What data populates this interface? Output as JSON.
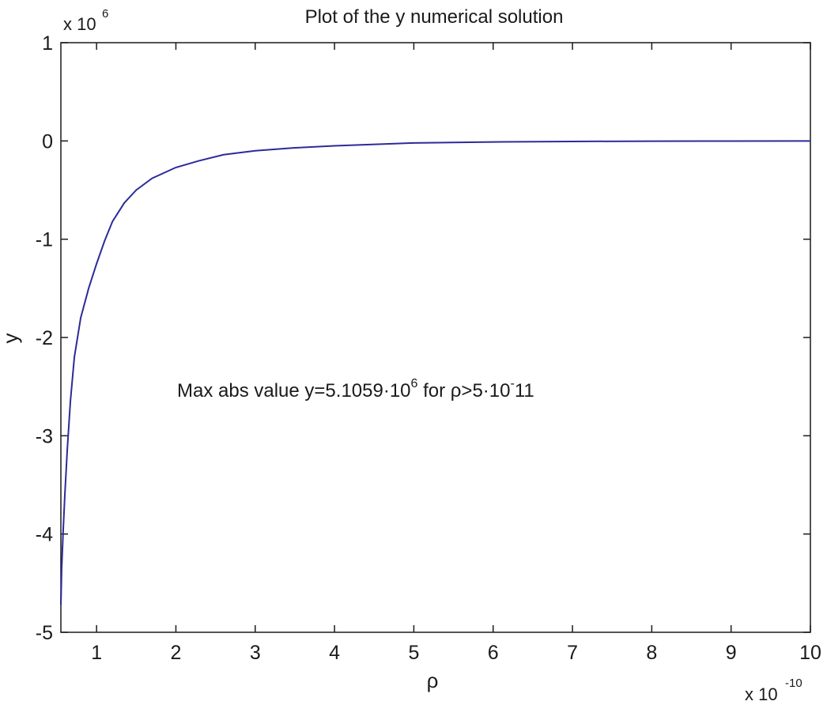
{
  "chart_data": {
    "type": "line",
    "title": "Plot of the y numerical solution",
    "xlabel": "ρ",
    "ylabel": "y",
    "x_multiplier": {
      "base": "x 10",
      "exponent": "-10"
    },
    "y_multiplier": {
      "base": "x 10",
      "exponent": "6"
    },
    "xlim": [
      0.55,
      10
    ],
    "ylim": [
      -5,
      1
    ],
    "xticks": [
      1,
      2,
      3,
      4,
      5,
      6,
      7,
      8,
      9,
      10
    ],
    "yticks": [
      1,
      0,
      -1,
      -2,
      -3,
      -4,
      -5
    ],
    "grid": false,
    "annotation": {
      "text_before": "Max abs value y=5.1059·10",
      "sup1": "6",
      "text_middle": " for ρ>5·10",
      "sup2": "-",
      "text_after": "11"
    },
    "series": [
      {
        "color": "#2b2b9a",
        "x": [
          0.55,
          0.56,
          0.58,
          0.6,
          0.63,
          0.67,
          0.72,
          0.8,
          0.9,
          1.0,
          1.1,
          1.2,
          1.35,
          1.5,
          1.7,
          2.0,
          2.3,
          2.6,
          3.0,
          3.5,
          4.0,
          5.0,
          6.0,
          7.0,
          8.0,
          9.0,
          10.0
        ],
        "y": [
          -4.72,
          -4.35,
          -3.95,
          -3.6,
          -3.15,
          -2.65,
          -2.2,
          -1.8,
          -1.5,
          -1.25,
          -1.02,
          -0.82,
          -0.63,
          -0.5,
          -0.38,
          -0.27,
          -0.2,
          -0.14,
          -0.1,
          -0.07,
          -0.05,
          -0.02,
          -0.01,
          -0.005,
          -0.002,
          -0.001,
          0.0
        ]
      }
    ]
  }
}
